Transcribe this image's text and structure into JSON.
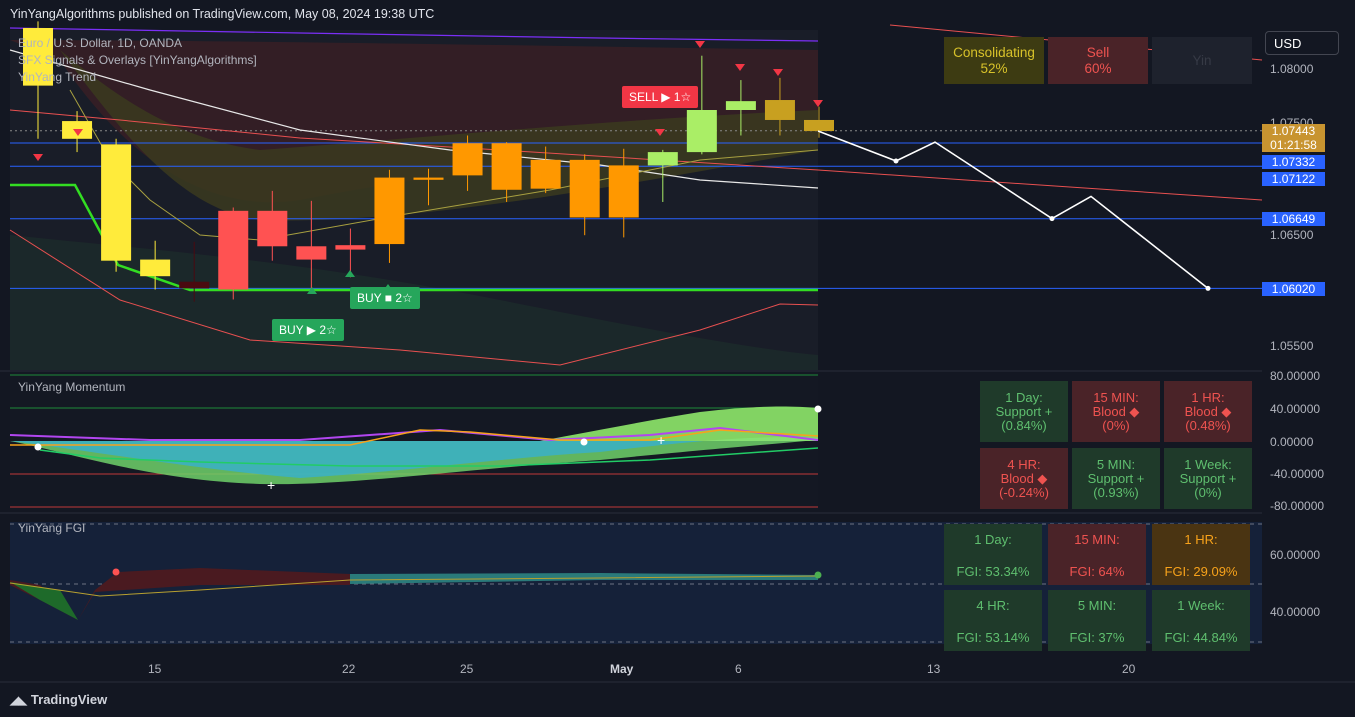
{
  "header": {
    "published": "YinYangAlgorithms published on TradingView.com, May 08, 2024 19:38 UTC"
  },
  "legend": {
    "symbol": "Euro / U.S. Dollar, 1D, OANDA",
    "indicator": "SFX Signals & Overlays [YinYangAlgorithms]",
    "trend": "YinYang Trend",
    "momentum": "YinYang Momentum",
    "fgi": "YinYang FGI"
  },
  "currency": "USD",
  "price_axis": [
    "1.08000",
    "1.07500",
    "1.06500",
    "1.05500"
  ],
  "price_tags": [
    {
      "value": "1.07443",
      "sub": "01:21:58",
      "color": "#c89430"
    },
    {
      "value": "1.07332",
      "color": "#2962ff"
    },
    {
      "value": "1.07122",
      "color": "#2962ff"
    },
    {
      "value": "1.06649",
      "color": "#2962ff"
    },
    {
      "value": "1.06020",
      "color": "#2962ff"
    }
  ],
  "momentum_axis": [
    "80.00000",
    "40.00000",
    "0.00000",
    "-40.00000",
    "-80.00000"
  ],
  "fgi_axis": [
    "60.00000",
    "40.00000"
  ],
  "time_axis": [
    "15",
    "22",
    "25",
    "May",
    "6",
    "13",
    "20"
  ],
  "signal_tags": {
    "sell": "SELL ▶ 1☆",
    "buy1": "BUY ■ 2☆",
    "buy2": "BUY ▶ 2☆"
  },
  "consolidation_table": [
    {
      "title": "Consolidating",
      "value": "52%",
      "bg": "#3d3b12",
      "fg": "#d8c22a"
    },
    {
      "title": "Sell",
      "value": "60%",
      "bg": "#4a2328",
      "fg": "#ef5350"
    },
    {
      "title": "Yin",
      "value": "",
      "bg": "#1e222d",
      "fg": "#363a45"
    }
  ],
  "momentum_table": [
    {
      "l1": "1 Day:",
      "l2": "Support +",
      "l3": "(0.84%)",
      "bg": "#1f3a2a",
      "fg": "#5fbf6f"
    },
    {
      "l1": "15 MIN:",
      "l2": "Blood ◆",
      "l3": "(0%)",
      "bg": "#4a2328",
      "fg": "#ef5350"
    },
    {
      "l1": "1 HR:",
      "l2": "Blood ◆",
      "l3": "(0.48%)",
      "bg": "#4a2328",
      "fg": "#ef5350"
    },
    {
      "l1": "4 HR:",
      "l2": "Blood ◆",
      "l3": "(-0.24%)",
      "bg": "#4a2328",
      "fg": "#ef5350"
    },
    {
      "l1": "5 MIN:",
      "l2": "Support +",
      "l3": "(0.93%)",
      "bg": "#1f3a2a",
      "fg": "#5fbf6f"
    },
    {
      "l1": "1 Week:",
      "l2": "Support +",
      "l3": "(0%)",
      "bg": "#1f3a2a",
      "fg": "#5fbf6f"
    }
  ],
  "fgi_table": [
    {
      "l1": "1 Day:",
      "l2": "FGI: 53.34%",
      "bg": "#1f3a2a",
      "fg": "#5fbf6f"
    },
    {
      "l1": "15 MIN:",
      "l2": "FGI: 64%",
      "bg": "#4a2328",
      "fg": "#ef5350"
    },
    {
      "l1": "1 HR:",
      "l2": "FGI: 29.09%",
      "bg": "#4a3412",
      "fg": "#f7a21b"
    },
    {
      "l1": "4 HR:",
      "l2": "FGI: 53.14%",
      "bg": "#1f3a2a",
      "fg": "#5fbf6f"
    },
    {
      "l1": "5 MIN:",
      "l2": "FGI: 37%",
      "bg": "#1f3a2a",
      "fg": "#5fbf6f"
    },
    {
      "l1": "1 Week:",
      "l2": "FGI: 44.84%",
      "bg": "#1f3a2a",
      "fg": "#5fbf6f"
    }
  ],
  "footer": {
    "brand": "TradingView"
  },
  "chart_data": {
    "type": "candlestick",
    "symbol": "EUR/USD",
    "timeframe": "1D",
    "ylim": [
      1.053,
      1.0835
    ],
    "candles": [
      {
        "o": 1.0785,
        "h": 1.0843,
        "l": 1.0737,
        "c": 1.0837,
        "color": "#ffeb3b"
      },
      {
        "o": 1.0753,
        "h": 1.0762,
        "l": 1.0725,
        "c": 1.0737,
        "color": "#ffeb3b"
      },
      {
        "o": 1.0732,
        "h": 1.0737,
        "l": 1.0617,
        "c": 1.0627,
        "color": "#ffeb3b"
      },
      {
        "o": 1.0628,
        "h": 1.0645,
        "l": 1.0601,
        "c": 1.0613,
        "color": "#ffeb3b"
      },
      {
        "o": 1.0608,
        "h": 1.0644,
        "l": 1.059,
        "c": 1.0602,
        "color": "#4a0a10"
      },
      {
        "o": 1.0601,
        "h": 1.0675,
        "l": 1.0592,
        "c": 1.0672,
        "color": "#ff5252"
      },
      {
        "o": 1.0672,
        "h": 1.069,
        "l": 1.0627,
        "c": 1.064,
        "color": "#ff5252"
      },
      {
        "o": 1.064,
        "h": 1.0681,
        "l": 1.0602,
        "c": 1.0628,
        "color": "#ff5252"
      },
      {
        "o": 1.0641,
        "h": 1.0656,
        "l": 1.0612,
        "c": 1.0637,
        "color": "#ff5252"
      },
      {
        "o": 1.0642,
        "h": 1.0709,
        "l": 1.0625,
        "c": 1.0702,
        "color": "#ff9800"
      },
      {
        "o": 1.07,
        "h": 1.071,
        "l": 1.0677,
        "c": 1.0702,
        "color": "#ff9800"
      },
      {
        "o": 1.0704,
        "h": 1.074,
        "l": 1.069,
        "c": 1.0733,
        "color": "#ff9800"
      },
      {
        "o": 1.0733,
        "h": 1.0734,
        "l": 1.068,
        "c": 1.0691,
        "color": "#ff9800"
      },
      {
        "o": 1.0718,
        "h": 1.073,
        "l": 1.0688,
        "c": 1.0692,
        "color": "#ff9800"
      },
      {
        "o": 1.0718,
        "h": 1.0723,
        "l": 1.065,
        "c": 1.0666,
        "color": "#ff9800"
      },
      {
        "o": 1.0713,
        "h": 1.0728,
        "l": 1.0648,
        "c": 1.0666,
        "color": "#ff9800"
      },
      {
        "o": 1.0713,
        "h": 1.0727,
        "l": 1.068,
        "c": 1.0725,
        "color": "#aaee66"
      },
      {
        "o": 1.0725,
        "h": 1.0812,
        "l": 1.0723,
        "c": 1.0763,
        "color": "#aaee66"
      },
      {
        "o": 1.0763,
        "h": 1.079,
        "l": 1.074,
        "c": 1.0771,
        "color": "#aaee66"
      },
      {
        "o": 1.0772,
        "h": 1.0792,
        "l": 1.074,
        "c": 1.0754,
        "color": "#c8a020"
      },
      {
        "o": 1.0754,
        "h": 1.0766,
        "l": 1.0738,
        "c": 1.0744,
        "color": "#c8a020"
      }
    ],
    "projection": [
      {
        "t": 0,
        "p": 1.0744
      },
      {
        "t": 4,
        "p": 1.0717
      },
      {
        "t": 6,
        "p": 1.0734
      },
      {
        "t": 12,
        "p": 1.0665
      },
      {
        "t": 14,
        "p": 1.0685
      },
      {
        "t": 20,
        "p": 1.0602
      }
    ],
    "horizontal_levels": [
      1.07443,
      1.07332,
      1.07122,
      1.06649,
      1.0602
    ]
  }
}
